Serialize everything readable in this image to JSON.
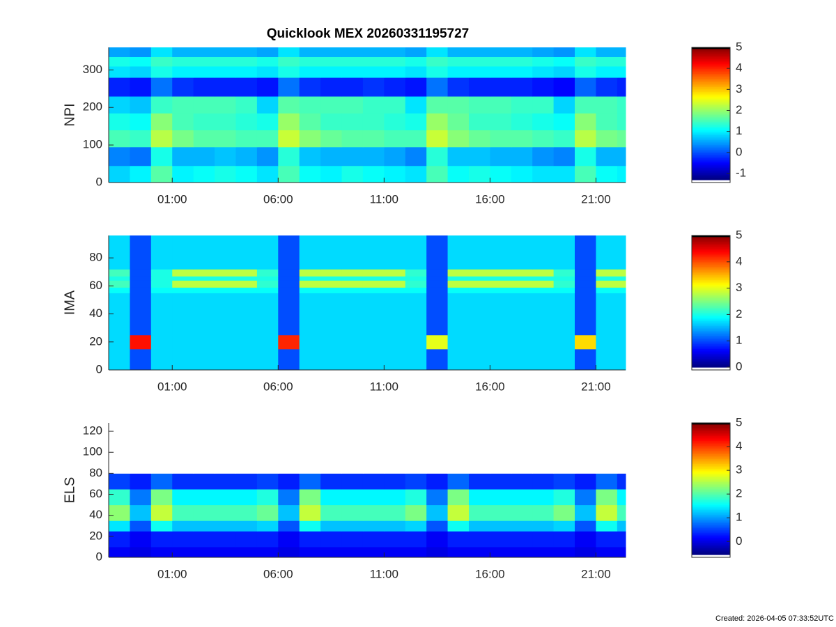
{
  "title": "Quicklook MEX 20260331195727",
  "footer": "Created: 2026-04-05 07:33:52UTC",
  "chart_data": [
    {
      "type": "heatmap",
      "ylabel": "NPI",
      "colormap": "jet",
      "xlim": [
        -2,
        22.4
      ],
      "xticks": [
        {
          "value": 1,
          "label": "01:00"
        },
        {
          "value": 6,
          "label": "06:00"
        },
        {
          "value": 11,
          "label": "11:00"
        },
        {
          "value": 16,
          "label": "16:00"
        },
        {
          "value": 21,
          "label": "21:00"
        }
      ],
      "ylim": [
        0,
        360
      ],
      "yticks": [
        0,
        100,
        200,
        300
      ],
      "zlim": [
        -1.3,
        5
      ],
      "zticks": [
        -1,
        0,
        1,
        2,
        3,
        4,
        5
      ],
      "xbins": [
        -2,
        -1,
        0,
        1,
        2,
        3,
        4,
        5,
        6,
        7,
        8,
        9,
        10,
        11,
        12,
        13,
        14,
        15,
        16,
        17,
        18,
        19,
        20,
        21,
        22,
        22.4
      ],
      "ybins": [
        0,
        45,
        95,
        140,
        185,
        230,
        280,
        310,
        335,
        360
      ],
      "z": [
        [
          0.8,
          1.0,
          1.6,
          1.0,
          1.1,
          1.2,
          1.1,
          0.9,
          1.5,
          1.1,
          1.0,
          1.2,
          1.1,
          1.0,
          0.9,
          1.5,
          1.1,
          1.2,
          1.1,
          1.0,
          0.9,
          0.9,
          1.5,
          1.1,
          1.0
        ],
        [
          0.3,
          0.2,
          1.2,
          0.6,
          0.6,
          0.7,
          0.6,
          0.4,
          1.3,
          0.7,
          0.6,
          0.6,
          0.6,
          0.5,
          0.3,
          1.3,
          0.7,
          0.7,
          0.6,
          0.6,
          0.4,
          0.3,
          1.2,
          0.6,
          0.6
        ],
        [
          1.5,
          1.4,
          2.2,
          1.8,
          1.6,
          1.6,
          1.5,
          1.5,
          2.3,
          1.9,
          1.7,
          1.6,
          1.6,
          1.5,
          1.5,
          2.3,
          1.9,
          1.7,
          1.6,
          1.6,
          1.5,
          1.4,
          2.2,
          1.8,
          1.7
        ],
        [
          1.2,
          1.1,
          1.9,
          1.5,
          1.4,
          1.4,
          1.3,
          1.2,
          2.0,
          1.6,
          1.4,
          1.4,
          1.4,
          1.3,
          1.2,
          2.0,
          1.7,
          1.4,
          1.4,
          1.3,
          1.2,
          1.1,
          1.9,
          1.5,
          1.4
        ],
        [
          0.8,
          0.7,
          1.4,
          1.5,
          1.5,
          1.5,
          1.4,
          0.8,
          1.6,
          1.5,
          1.5,
          1.5,
          1.4,
          1.4,
          0.9,
          1.6,
          1.6,
          1.5,
          1.5,
          1.4,
          1.4,
          0.8,
          1.5,
          1.5,
          1.4
        ],
        [
          -0.3,
          -0.4,
          0.2,
          -0.2,
          -0.3,
          -0.3,
          -0.3,
          -0.4,
          0.2,
          -0.2,
          -0.3,
          -0.3,
          -0.2,
          -0.3,
          -0.4,
          0.2,
          -0.2,
          -0.3,
          -0.3,
          -0.3,
          -0.4,
          -0.5,
          0.1,
          -0.2,
          -0.3
        ],
        [
          0.9,
          0.8,
          1.2,
          1.0,
          1.0,
          1.0,
          1.0,
          0.9,
          1.2,
          1.0,
          1.0,
          1.0,
          1.0,
          1.0,
          0.9,
          1.2,
          1.0,
          1.0,
          1.0,
          1.0,
          0.9,
          0.8,
          1.2,
          1.0,
          1.0
        ],
        [
          1.2,
          1.1,
          1.4,
          1.3,
          1.3,
          1.3,
          1.3,
          1.2,
          1.4,
          1.3,
          1.3,
          1.3,
          1.3,
          1.3,
          1.2,
          1.4,
          1.3,
          1.3,
          1.3,
          1.3,
          1.2,
          1.1,
          1.4,
          1.3,
          1.3
        ],
        [
          0.5,
          0.4,
          0.9,
          0.6,
          0.6,
          0.6,
          0.6,
          0.5,
          0.9,
          0.6,
          0.6,
          0.6,
          0.6,
          0.6,
          0.5,
          0.9,
          0.6,
          0.6,
          0.6,
          0.6,
          0.5,
          0.4,
          0.9,
          0.6,
          0.6
        ]
      ]
    },
    {
      "type": "heatmap",
      "ylabel": "IMA",
      "colormap": "jet",
      "xlim": [
        -2,
        22.4
      ],
      "xticks": [
        {
          "value": 1,
          "label": "01:00"
        },
        {
          "value": 6,
          "label": "06:00"
        },
        {
          "value": 11,
          "label": "11:00"
        },
        {
          "value": 16,
          "label": "16:00"
        },
        {
          "value": 21,
          "label": "21:00"
        }
      ],
      "ylim": [
        0,
        96
      ],
      "yticks": [
        0,
        20,
        40,
        60,
        80
      ],
      "zlim": [
        0,
        5
      ],
      "zticks": [
        0,
        1,
        2,
        3,
        4,
        5
      ],
      "xbins": [
        -2,
        -1,
        0,
        1,
        2,
        3,
        4,
        5,
        6,
        7,
        8,
        9,
        10,
        11,
        12,
        13,
        14,
        15,
        16,
        17,
        18,
        19,
        20,
        21,
        22,
        22.4
      ],
      "ybins": [
        0,
        15,
        25,
        55,
        59,
        64,
        67,
        72,
        96
      ],
      "z": [
        [
          1.7,
          1.0,
          1.7,
          1.7,
          1.7,
          1.7,
          1.7,
          1.7,
          1.0,
          1.7,
          1.7,
          1.7,
          1.7,
          1.7,
          1.7,
          1.0,
          1.7,
          1.7,
          1.7,
          1.7,
          1.7,
          1.7,
          1.0,
          1.7,
          1.7
        ],
        [
          1.7,
          4.3,
          1.7,
          1.7,
          1.7,
          1.7,
          1.7,
          1.7,
          4.2,
          1.7,
          1.7,
          1.7,
          1.7,
          1.7,
          1.7,
          3.0,
          1.7,
          1.7,
          1.7,
          1.7,
          1.7,
          1.7,
          3.3,
          1.7,
          1.7
        ],
        [
          1.7,
          1.0,
          1.7,
          1.7,
          1.7,
          1.7,
          1.7,
          1.7,
          1.0,
          1.7,
          1.7,
          1.7,
          1.7,
          1.7,
          1.7,
          1.0,
          1.7,
          1.7,
          1.7,
          1.7,
          1.7,
          1.7,
          1.0,
          1.7,
          1.7
        ],
        [
          1.9,
          1.0,
          1.9,
          1.9,
          1.9,
          1.9,
          1.9,
          1.9,
          1.0,
          1.9,
          1.9,
          1.9,
          1.9,
          1.9,
          1.9,
          1.0,
          1.9,
          1.9,
          1.9,
          1.9,
          1.9,
          1.9,
          1.0,
          1.9,
          1.9
        ],
        [
          2.2,
          1.0,
          2.0,
          2.8,
          2.8,
          2.8,
          2.8,
          2.1,
          1.0,
          2.8,
          2.8,
          2.8,
          2.8,
          2.8,
          2.1,
          1.0,
          2.8,
          2.8,
          2.8,
          2.8,
          2.8,
          2.1,
          1.0,
          2.8,
          2.8
        ],
        [
          2.0,
          1.0,
          2.0,
          2.0,
          2.0,
          2.0,
          2.0,
          2.0,
          1.0,
          2.0,
          2.0,
          2.0,
          2.0,
          2.0,
          2.0,
          1.0,
          2.0,
          2.0,
          2.0,
          2.0,
          2.0,
          2.0,
          1.0,
          2.0,
          2.0
        ],
        [
          2.2,
          1.0,
          2.0,
          2.8,
          2.8,
          2.8,
          2.8,
          2.1,
          1.0,
          2.8,
          2.8,
          2.8,
          2.8,
          2.8,
          2.1,
          1.0,
          2.8,
          2.8,
          2.8,
          2.8,
          2.8,
          2.1,
          1.0,
          2.8,
          2.8
        ],
        [
          1.7,
          1.0,
          1.7,
          1.7,
          1.7,
          1.7,
          1.7,
          1.7,
          1.0,
          1.7,
          1.7,
          1.7,
          1.7,
          1.7,
          1.7,
          1.0,
          1.7,
          1.7,
          1.7,
          1.7,
          1.7,
          1.7,
          1.0,
          1.7,
          1.7
        ]
      ]
    },
    {
      "type": "heatmap",
      "ylabel": "ELS",
      "colormap": "jet",
      "xlim": [
        -2,
        22.4
      ],
      "xticks": [
        {
          "value": 1,
          "label": "01:00"
        },
        {
          "value": 6,
          "label": "06:00"
        },
        {
          "value": 11,
          "label": "11:00"
        },
        {
          "value": 16,
          "label": "16:00"
        },
        {
          "value": 21,
          "label": "21:00"
        }
      ],
      "ylim": [
        0,
        128
      ],
      "yticks": [
        0,
        20,
        40,
        60,
        80,
        100,
        120
      ],
      "zlim": [
        -0.55,
        5
      ],
      "zticks": [
        0,
        1,
        2,
        3,
        4,
        5
      ],
      "xbins": [
        -2,
        -1,
        0,
        1,
        2,
        3,
        4,
        5,
        6,
        7,
        8,
        9,
        10,
        11,
        12,
        13,
        14,
        15,
        16,
        17,
        18,
        19,
        20,
        21,
        22,
        22.4
      ],
      "ybins": [
        0,
        10,
        25,
        35,
        50,
        65,
        80,
        128
      ],
      "z": [
        [
          0.1,
          0.0,
          0.1,
          0.1,
          0.1,
          0.1,
          0.1,
          0.1,
          0.0,
          0.1,
          0.1,
          0.1,
          0.1,
          0.1,
          0.1,
          0.0,
          0.1,
          0.1,
          0.1,
          0.1,
          0.1,
          0.1,
          0.0,
          0.1,
          0.1
        ],
        [
          0.3,
          0.1,
          0.3,
          0.3,
          0.3,
          0.3,
          0.3,
          0.3,
          0.1,
          0.3,
          0.3,
          0.3,
          0.3,
          0.3,
          0.3,
          0.1,
          0.3,
          0.3,
          0.3,
          0.3,
          0.3,
          0.3,
          0.1,
          0.3,
          0.3
        ],
        [
          1.4,
          0.6,
          1.6,
          1.2,
          1.2,
          1.2,
          1.2,
          1.3,
          0.6,
          1.6,
          1.2,
          1.2,
          1.2,
          1.2,
          1.3,
          0.6,
          1.6,
          1.2,
          1.2,
          1.2,
          1.2,
          1.3,
          0.6,
          1.6,
          1.2
        ],
        [
          2.3,
          1.2,
          2.6,
          1.9,
          1.9,
          1.9,
          1.9,
          2.1,
          1.2,
          2.6,
          1.9,
          1.9,
          1.9,
          1.9,
          2.2,
          1.2,
          2.6,
          1.9,
          1.9,
          1.9,
          1.9,
          2.2,
          1.2,
          2.6,
          1.9
        ],
        [
          1.8,
          0.8,
          2.2,
          1.5,
          1.5,
          1.5,
          1.5,
          1.7,
          0.8,
          2.2,
          1.5,
          1.5,
          1.5,
          1.5,
          1.7,
          0.8,
          2.2,
          1.5,
          1.5,
          1.5,
          1.5,
          1.7,
          0.8,
          2.2,
          1.5
        ],
        [
          0.5,
          0.3,
          0.7,
          0.4,
          0.4,
          0.4,
          0.4,
          0.5,
          0.3,
          0.7,
          0.4,
          0.4,
          0.4,
          0.4,
          0.5,
          0.3,
          0.7,
          0.4,
          0.4,
          0.4,
          0.4,
          0.5,
          0.3,
          0.7,
          0.4
        ],
        [
          -1,
          -1,
          -1,
          -1,
          -1,
          -1,
          -1,
          -1,
          -1,
          -1,
          -1,
          -1,
          -1,
          -1,
          -1,
          -1,
          -1,
          -1,
          -1,
          -1,
          -1,
          -1,
          -1,
          -1,
          -1
        ]
      ]
    }
  ]
}
